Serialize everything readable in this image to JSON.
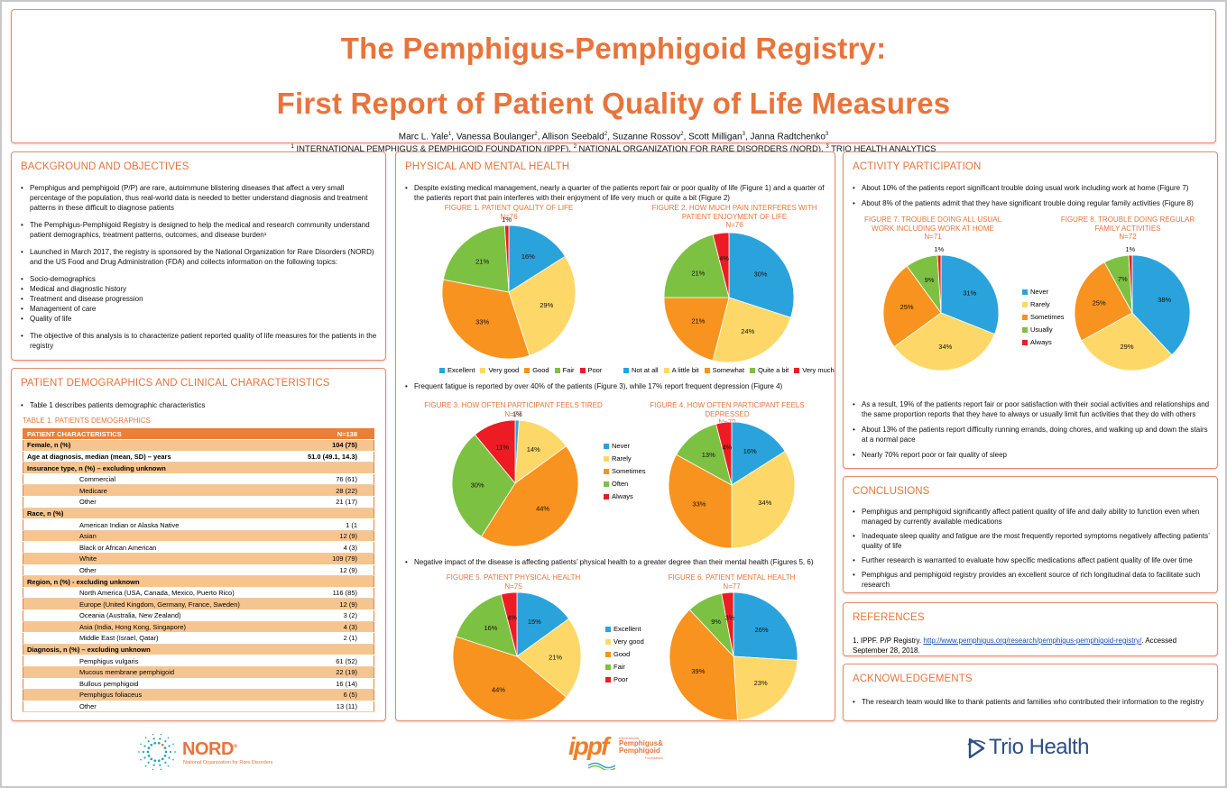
{
  "header": {
    "title_line1": "The Pemphigus-Pemphigoid Registry:",
    "title_line2": "First Report of Patient Quality of Life Measures",
    "authors": [
      {
        "name": "Marc L. Yale",
        "sup": "1"
      },
      {
        "name": "Vanessa Boulanger",
        "sup": "2"
      },
      {
        "name": "Allison Seebald",
        "sup": "2"
      },
      {
        "name": "Suzanne Rossov",
        "sup": "2"
      },
      {
        "name": "Scott Milligan",
        "sup": "3"
      },
      {
        "name": "Janna Radtchenko",
        "sup": "3"
      }
    ],
    "affiliations": [
      {
        "sup": "1",
        "name": "INTERNATIONAL PEMPHIGUS & PEMPHIGOID FOUNDATION (IPPF)"
      },
      {
        "sup": "2",
        "name": "NATIONAL ORGANIZATION FOR RARE DISORDERS (NORD)"
      },
      {
        "sup": "3",
        "name": "TRIO HEALTH ANALYTICS"
      }
    ]
  },
  "background": {
    "title": "BACKGROUND AND OBJECTIVES",
    "bullets": [
      "Pemphigus and pemphigoid (P/P) are rare, autoimmune blistering diseases that affect a very small percentage of the population, thus real-world data is needed to better understand diagnosis and treatment patterns in these difficult to diagnose patients",
      "The Pemphigus-Pemphigoid Registry is designed to help the medical and research community understand patient demographics, treatment patterns, outcomes, and disease burden¹",
      "Launched in March 2017, the registry is sponsored by the National Organization for Rare Disorders (NORD) and the US Food and Drug Administration (FDA) and collects information on the following topics:"
    ],
    "topics": [
      "Socio-demographics",
      "Medical and diagnostic history",
      "Treatment and disease progression",
      "Management of care",
      "Quality of life"
    ],
    "objective": "The objective of this analysis is to characterize patient reported quality of life measures for the patients in the registry"
  },
  "demographics": {
    "title": "PATIENT DEMOGRAPHICS AND CLINICAL CHARACTERISTICS",
    "bullet": "Table 1 describes patients demographic characteristics",
    "table_caption": "TABLE 1. PATIENTS DEMOGRAPHICS",
    "table_header": [
      "PATIENT CHARACTERISTICS",
      "N=138"
    ],
    "rows": [
      {
        "label": "Female, n (%)",
        "value": "104 (75)",
        "kind": "cat"
      },
      {
        "label": "Age at diagnosis, median (mean, SD) – years",
        "value": "51.0 (49.1, 14.3)",
        "kind": "cat"
      },
      {
        "label": "Insurance type, n (%) – excluding unknown",
        "value": "",
        "kind": "cat"
      },
      {
        "label": "Commercial",
        "value": "76 (61)",
        "kind": "sub"
      },
      {
        "label": "Medicare",
        "value": "28 (22)",
        "kind": "sub"
      },
      {
        "label": "Other",
        "value": "21 (17)",
        "kind": "sub"
      },
      {
        "label": "Race, n (%)",
        "value": "",
        "kind": "cat"
      },
      {
        "label": "American Indian or Alaska Native",
        "value": "1 (1",
        "kind": "sub"
      },
      {
        "label": "Asian",
        "value": "12 (9)",
        "kind": "sub"
      },
      {
        "label": "Black or African American",
        "value": "4 (3)",
        "kind": "sub"
      },
      {
        "label": "White",
        "value": "109 (79)",
        "kind": "sub"
      },
      {
        "label": "Other",
        "value": "12 (9)",
        "kind": "sub"
      },
      {
        "label": "Region, n (%) -  excluding unknown",
        "value": "",
        "kind": "cat"
      },
      {
        "label": "North America (USA, Canada, Mexico, Puerto Rico)",
        "value": "116 (85)",
        "kind": "sub"
      },
      {
        "label": "Europe (United Kingdom, Germany, France, Sweden)",
        "value": "12 (9)",
        "kind": "sub"
      },
      {
        "label": "Oceania (Australia, New Zealand)",
        "value": "3 (2)",
        "kind": "sub"
      },
      {
        "label": "Asia (India, Hong Kong, Singapore)",
        "value": "4 (3)",
        "kind": "sub"
      },
      {
        "label": "Middle East (Israel, Qatar)",
        "value": "2 (1)",
        "kind": "sub"
      },
      {
        "label": "Diagnosis, n (%) – excluding unknown",
        "value": "",
        "kind": "cat"
      },
      {
        "label": "Pemphigus vulgaris",
        "value": "61 (52)",
        "kind": "sub"
      },
      {
        "label": "Mucous membrane pemphigoid",
        "value": "22 (19)",
        "kind": "sub"
      },
      {
        "label": "Bullous pemphigoid",
        "value": "16 (14)",
        "kind": "sub"
      },
      {
        "label": "Pemphigus foliaceus",
        "value": "6 (5)",
        "kind": "sub"
      },
      {
        "label": "Other",
        "value": "13 (11)",
        "kind": "sub"
      }
    ]
  },
  "physical_mental": {
    "title": "PHYSICAL AND MENTAL HEALTH",
    "bullet1": "Despite existing medical management, nearly a quarter of the patients report fair or poor quality of life (Figure 1) and a quarter of the patients report that pain interferes with their enjoyment of life very much or quite a bit (Figure 2)",
    "bullet2": "Frequent fatigue is reported by over 40% of the patients (Figure 3), while 17% report frequent depression (Figure 4)",
    "bullet3": "Negative impact of the disease is affecting patients’ physical health to a greater degree than their mental health (Figures 5, 6)",
    "legend_qol": [
      "Excellent",
      "Very good",
      "Good",
      "Fair",
      "Poor"
    ],
    "legend_pain": [
      "Not at all",
      "A little bit",
      "Somewhat",
      "Quite a bit",
      "Very much"
    ],
    "legend_freq": [
      "Never",
      "Rarely",
      "Sometimes",
      "Often",
      "Always"
    ]
  },
  "activity": {
    "title": "ACTIVITY PARTICIPATION",
    "bullets_top": [
      "About 10% of the patients report significant trouble doing usual work including work at home (Figure 7)",
      "About 8% of the patients admit that they have significant trouble doing regular family activities (Figure 8)"
    ],
    "legend": [
      "Never",
      "Rarely",
      "Sometimes",
      "Usually",
      "Always"
    ],
    "bullets_bottom": [
      "As a result, 19% of the patients report fair or poor satisfaction with their social activities and relationships and the same proportion reports that they have to always or usually limit fun activities that they do with others",
      "About 13% of the patients report difficulty running errands, doing chores, and walking up and down the stairs at a normal pace",
      "Nearly 70% report poor or fair quality of sleep"
    ]
  },
  "conclusions": {
    "title": "CONCLUSIONS",
    "bullets": [
      "Pemphigus and pemphigoid significantly affect patient quality of life and daily ability to function even when managed by currently available medications",
      "Inadequate sleep quality and fatigue are the most frequently reported symptoms negatively affecting patients’ quality of life",
      "Further research is warranted to evaluate how specific medications affect patient quality of life over time",
      "Pemphigus and pemphigoid registry provides an excellent source of rich longitudinal data to facilitate such research"
    ]
  },
  "references": {
    "title": "REFERENCES",
    "items": [
      {
        "num": "1.",
        "prefix": "IPPF. P/P Registry. ",
        "link": "http://www.pemphigus.org/research/pemphigus-pemphigoid-registry/",
        "suffix": ". Accessed September 28, 2018."
      }
    ]
  },
  "acknowledgements": {
    "title": "ACKNOWLEDGEMENTS",
    "bullet": "The research team would like to thank patients and families who contributed their information to the registry"
  },
  "logos": {
    "nord": {
      "word": "NORD",
      "reg": "®",
      "sub": "National Organization for Rare Disorders"
    },
    "ippf": {
      "word": "ippf",
      "tiny_top": "International",
      "line1": "Pemphigus&",
      "line2": "Pemphigoid",
      "tiny_bottom": "Foundation"
    },
    "trio": {
      "word": "Trio Health"
    }
  },
  "colors": {
    "accent": "#e8743b",
    "blue": "#2aa3dd",
    "yellow": "#fdd868",
    "orange": "#f7931e",
    "green": "#7dc142",
    "red": "#ed1c24"
  },
  "chart_data": [
    {
      "id": "fig1",
      "type": "pie",
      "title": "FIGURE 1. PATIENT QUALITY OF LIFE",
      "n": "N=76",
      "categories": [
        "Excellent",
        "Very good",
        "Good",
        "Fair",
        "Poor"
      ],
      "values": [
        16,
        29,
        33,
        21,
        1
      ],
      "labels": [
        "16%",
        "29%",
        "33%",
        "21%",
        "1%"
      ],
      "legend": "bottom"
    },
    {
      "id": "fig2",
      "type": "pie",
      "title": "FIGURE 2. HOW MUCH PAIN INTERFERES WITH PATIENT ENJOYMENT OF LIFE",
      "n": "N=76",
      "categories": [
        "Not at all",
        "A little bit",
        "Somewhat",
        "Quite a bit",
        "Very much"
      ],
      "values": [
        30,
        24,
        21,
        21,
        4
      ],
      "labels": [
        "30%",
        "24%",
        "21%",
        "21%",
        "4%"
      ],
      "legend": "bottom"
    },
    {
      "id": "fig3",
      "type": "pie",
      "title": "FIGURE 3. HOW OFTEN PARTICIPANT FEELS TIRED",
      "n": "N=77",
      "categories": [
        "Never",
        "Rarely",
        "Sometimes",
        "Often",
        "Always"
      ],
      "values": [
        1,
        14,
        44,
        30,
        11
      ],
      "labels": [
        "1%",
        "14%",
        "44%",
        "30%",
        "11%"
      ],
      "legend": "right"
    },
    {
      "id": "fig4",
      "type": "pie",
      "title": "FIGURE 4. HOW OFTEN PARTICIPANT FEELS DEPRESSED",
      "n": "N=79",
      "categories": [
        "Never",
        "Rarely",
        "Sometimes",
        "Often",
        "Always"
      ],
      "values": [
        16,
        34,
        33,
        13,
        4
      ],
      "labels": [
        "16%",
        "34%",
        "33%",
        "13%",
        "4%"
      ],
      "legend": "left"
    },
    {
      "id": "fig5",
      "type": "pie",
      "title": "FIGURE 5. PATIENT PHYSICAL HEALTH",
      "n": "N=75",
      "categories": [
        "Excellent",
        "Very good",
        "Good",
        "Fair",
        "Poor"
      ],
      "values": [
        15,
        21,
        44,
        16,
        4
      ],
      "labels": [
        "15%",
        "21%",
        "44%",
        "16%",
        "4%"
      ],
      "legend": "right"
    },
    {
      "id": "fig6",
      "type": "pie",
      "title": "FIGURE 6. PATIENT MENTAL HEALTH",
      "n": "N=77",
      "categories": [
        "Excellent",
        "Very good",
        "Good",
        "Fair",
        "Poor"
      ],
      "values": [
        26,
        23,
        39,
        9,
        3
      ],
      "labels": [
        "26%",
        "23%",
        "39%",
        "9%",
        "3%"
      ],
      "legend": "left"
    },
    {
      "id": "fig7",
      "type": "pie",
      "title": "FIGURE 7. TROUBLE DOING ALL USUAL WORK INCLUDING WORK AT HOME",
      "n": "N=71",
      "categories": [
        "Never",
        "Rarely",
        "Sometimes",
        "Usually",
        "Always"
      ],
      "values": [
        31,
        34,
        25,
        9,
        1
      ],
      "labels": [
        "31%",
        "34%",
        "25%",
        "9%",
        "1%"
      ],
      "legend": "right"
    },
    {
      "id": "fig8",
      "type": "pie",
      "title": "FIGURE 8. TROUBLE DOING REGULAR FAMILY ACTIVITIES",
      "n": "N=72",
      "categories": [
        "Never",
        "Rarely",
        "Sometimes",
        "Usually",
        "Always"
      ],
      "values": [
        38,
        29,
        25,
        7,
        1
      ],
      "labels": [
        "38%",
        "29%",
        "25%",
        "7%",
        "1%"
      ],
      "legend": "left"
    }
  ]
}
